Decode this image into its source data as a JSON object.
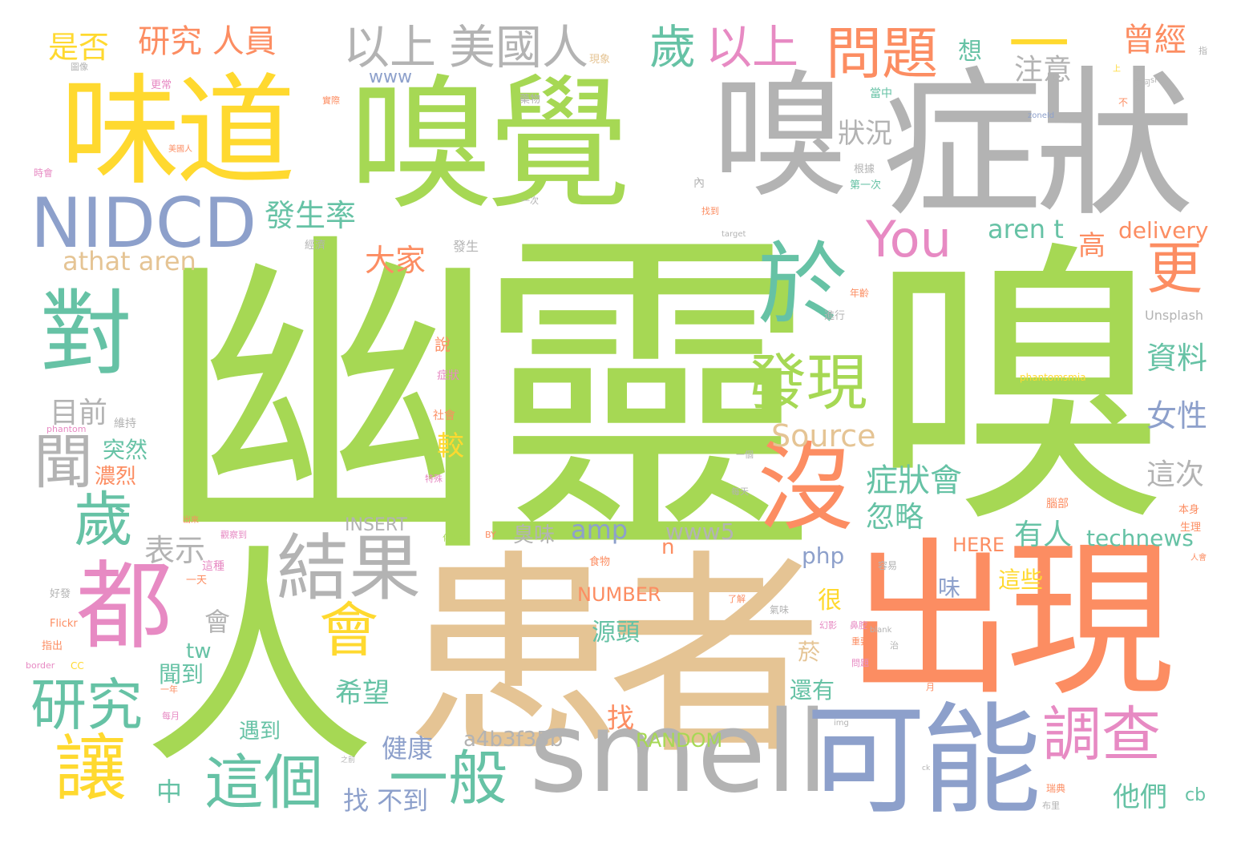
{
  "palette": {
    "green": "#a6d854",
    "gray": "#b3b3b3",
    "yellow": "#ffd92f",
    "orange": "#fc8d62",
    "teal": "#66c2a5",
    "blue": "#8da0cb",
    "pink": "#e78ac3",
    "tan": "#e5c494"
  },
  "words": {
    "youling": "幽靈",
    "xiu_big": "嗅",
    "ren_big": "人",
    "huanzhe": "患者",
    "chuxian": "出現",
    "xiujue": "嗅覺",
    "xiu_mid": "嗅",
    "zhengzhuang": "症狀",
    "weidao": "味道",
    "smell": "smell",
    "keneng": "可能",
    "dou": "都",
    "nidcd": "NIDCD",
    "dui": "對",
    "yu": "於",
    "mei": "沒",
    "fazhui": "發現",
    "jieguo": "結果",
    "wenti": "問題",
    "diaocha": "調查",
    "yiban": "一般",
    "zhege": "這個",
    "yanjiu": "研究",
    "rang": "讓",
    "sui_left": "歲",
    "wen": "聞",
    "you": "You",
    "sui_top": "歲",
    "yishang_pink": "以上",
    "yishang_gray": "以上",
    "meiguoren": "美國人",
    "yanjiu_renyuan": "研究 人員",
    "shifou": "是否",
    "dash": "一",
    "cengjing": "曾經",
    "geng": "更",
    "hui": "會",
    "fashenglv": "發生率",
    "zhuangkuang": "狀況",
    "dajia": "大家",
    "athat_aren": "athat aren",
    "aren_t": "aren t",
    "delivery": "delivery",
    "gao": "高",
    "zhuyi": "注意",
    "xiang": "想",
    "www": "www",
    "source": "Source",
    "mumian": "目前",
    "biaoshi": "表示",
    "ziliao": "資料",
    "nvxing": "女性",
    "jiao": "較",
    "zhengzhuanghui": "症狀會",
    "zheci": "這次",
    "huilue": "忽略",
    "amp": "amp",
    "www5": "www5",
    "insert": "INSERT",
    "chouwei": "臭味",
    "youren": "有人",
    "technews": "technews",
    "n": "n",
    "hen": "很",
    "php": "php",
    "here": "HERE",
    "number": "NUMBER",
    "wei": "味",
    "zhexie": "這些",
    "yuantou": "源頭",
    "hui_small": "會",
    "tw": "tw",
    "turan": "突然",
    "nonglie": "濃烈",
    "xiwang": "希望",
    "wendao": "聞到",
    "haiyou": "還有",
    "zhao": "找",
    "zhaobudao": "找 不到",
    "yudao": "遇到",
    "jiankang": "健康",
    "a4b3": "a4b3f35b",
    "random": "RANDOM",
    "zhong": "中",
    "tamen": "他們",
    "cb": "cb",
    "yan": "菸",
    "small": [
      "圖像",
      "現象",
      "指",
      "上",
      "為何",
      "更常",
      "實際",
      "藥物",
      "當中",
      "src",
      "不",
      "zoneId",
      "美國人",
      "時會",
      "根據",
      "第一次",
      "內",
      "一次",
      "找到",
      "經濟",
      "發生",
      "target",
      "進行",
      "年齡",
      "Unsplash",
      "phantomsmia",
      "說",
      "症狀",
      "維持",
      "phantom",
      "社會",
      "一個",
      "特殊",
      "每天",
      "腦部",
      "本身",
      "生理",
      "人會",
      "出來",
      "觀察到",
      "化學藥",
      "BY",
      "食物",
      "這種",
      "一天",
      "好發",
      "Flickr",
      "指出",
      "border",
      "CC",
      "一年",
      "每月",
      "鼻腔",
      "重要",
      "治",
      "blank",
      "img",
      "之前",
      "ck",
      "瑞典",
      "布里",
      "問題",
      "容易",
      "氣味",
      "了解",
      "幻影",
      "月"
    ]
  }
}
